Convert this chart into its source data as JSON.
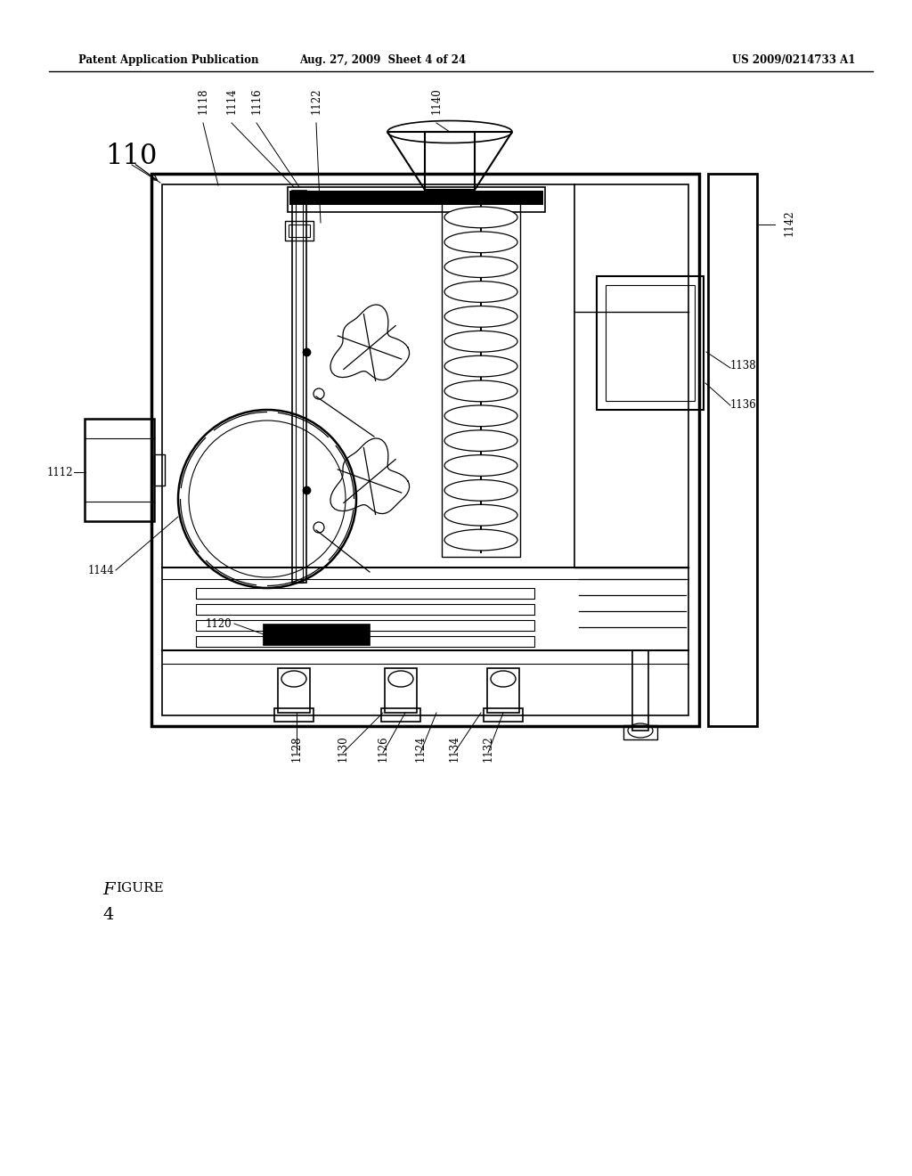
{
  "bg_color": "#ffffff",
  "line_color": "#000000",
  "header_left": "Patent Application Publication",
  "header_mid": "Aug. 27, 2009  Sheet 4 of 24",
  "header_right": "US 2009/0214733 A1",
  "label_fontsize": 8.5,
  "header_fontsize": 8.5
}
